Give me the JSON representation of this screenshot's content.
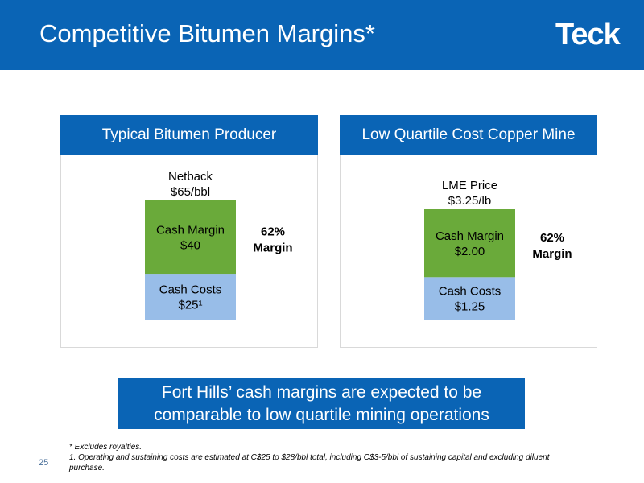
{
  "header": {
    "title": "Competitive Bitumen Margins*",
    "logo_text": "Teck"
  },
  "colors": {
    "brand_blue": "#0a64b5",
    "cash_margin": "#6aaa3a",
    "cash_costs": "#98bde8"
  },
  "chart_data": [
    {
      "type": "bar",
      "stacked": true,
      "title": "Typical Bitumen Producer",
      "categories": [
        ""
      ],
      "series": [
        {
          "name": "Cash Costs",
          "values": [
            25
          ]
        },
        {
          "name": "Cash Margin",
          "values": [
            40
          ]
        }
      ],
      "total_label": [
        "Netback",
        "$65/bbl"
      ],
      "segment_labels": [
        [
          "Cash Costs",
          "$25¹"
        ],
        [
          "Cash Margin",
          "$40"
        ]
      ],
      "annotation": [
        "62%",
        "Margin"
      ],
      "ylim": [
        0,
        65
      ]
    },
    {
      "type": "bar",
      "stacked": true,
      "title": "Low Quartile Cost Copper Mine",
      "categories": [
        ""
      ],
      "series": [
        {
          "name": "Cash Costs",
          "values": [
            1.25
          ]
        },
        {
          "name": "Cash Margin",
          "values": [
            2.0
          ]
        }
      ],
      "total_label": [
        "LME Price",
        "$3.25/lb"
      ],
      "segment_labels": [
        [
          "Cash Costs",
          "$1.25"
        ],
        [
          "Cash Margin",
          "$2.00"
        ]
      ],
      "annotation": [
        "62%",
        "Margin"
      ],
      "ylim": [
        0,
        3.25
      ]
    }
  ],
  "conclusion": {
    "line1": "Fort Hills’ cash margins are expected to be",
    "line2": "comparable to low quartile mining operations"
  },
  "footnotes": {
    "line1": "* Excludes royalties.",
    "line2": "1. Operating and sustaining costs are estimated at C$25 to $28/bbl total, including C$3-5/bbl of sustaining capital and excluding diluent purchase."
  },
  "page_number": "25"
}
